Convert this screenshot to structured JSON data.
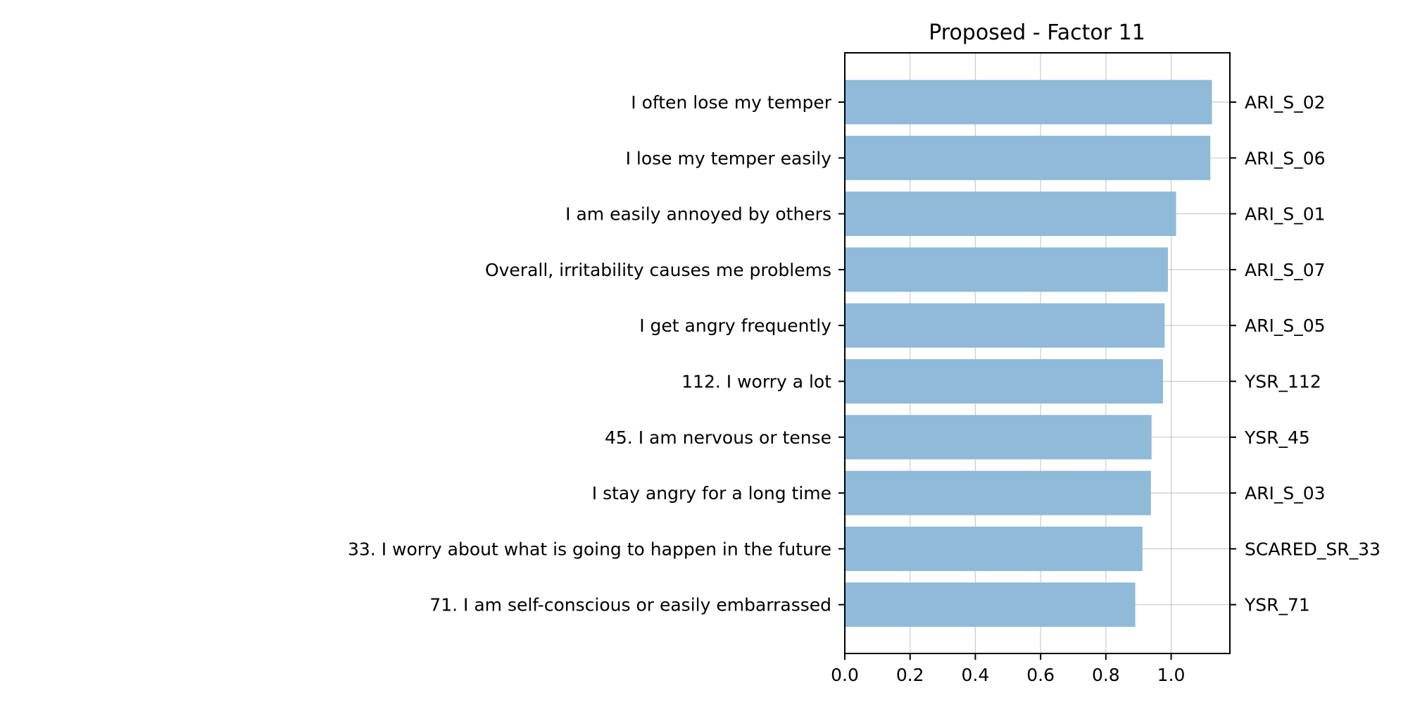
{
  "chart_data": {
    "type": "bar",
    "orientation": "horizontal",
    "title": "Proposed - Factor 11",
    "xlabel": "",
    "ylabel": "",
    "xlim": [
      0,
      1.18
    ],
    "x_ticks": [
      0.0,
      0.2,
      0.4,
      0.6,
      0.8,
      1.0
    ],
    "x_tick_labels": [
      "0.0",
      "0.2",
      "0.4",
      "0.6",
      "0.8",
      "1.0"
    ],
    "grid": true,
    "bar_color": "#8fbad8",
    "categories": [
      "I often lose my temper",
      "I lose my temper easily",
      "I am easily annoyed by others",
      "Overall, irritability causes me problems",
      "I get angry frequently",
      "112. I worry a lot",
      "45. I am nervous or tense",
      "I stay angry for a long time",
      "33. I worry about what is going to happen in the future",
      "71. I am self-conscious or easily embarrassed"
    ],
    "right_labels": [
      "ARI_S_02",
      "ARI_S_06",
      "ARI_S_01",
      "ARI_S_07",
      "ARI_S_05",
      "YSR_112",
      "YSR_45",
      "ARI_S_03",
      "SCARED_SR_33",
      "YSR_71"
    ],
    "values": [
      1.125,
      1.12,
      1.015,
      0.99,
      0.98,
      0.975,
      0.94,
      0.938,
      0.912,
      0.89
    ]
  }
}
